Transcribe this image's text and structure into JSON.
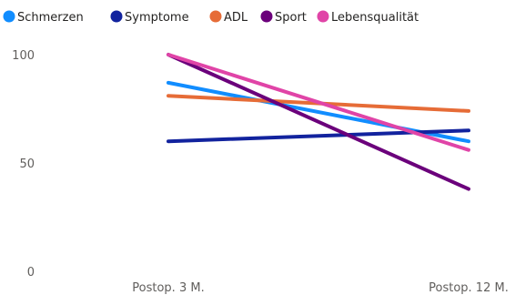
{
  "chart_data": {
    "type": "line",
    "categories": [
      "Postop. 3 M.",
      "Postop. 12 M."
    ],
    "series": [
      {
        "name": "Schmerzen",
        "color": "#118DFF",
        "values": [
          87,
          60
        ]
      },
      {
        "name": "Symptome",
        "color": "#12239E",
        "values": [
          60,
          65
        ]
      },
      {
        "name": "ADL",
        "color": "#E66C37",
        "values": [
          81,
          74
        ]
      },
      {
        "name": "Sport",
        "color": "#6B007B",
        "values": [
          100,
          38
        ]
      },
      {
        "name": "Lebensqualität",
        "color": "#E044A7",
        "values": [
          100,
          56
        ]
      }
    ],
    "y_ticks": [
      "0",
      "50",
      "100"
    ],
    "ylim": [
      0,
      100
    ],
    "xlabel": "",
    "ylabel": "",
    "legend": "top-left",
    "grid": false
  }
}
